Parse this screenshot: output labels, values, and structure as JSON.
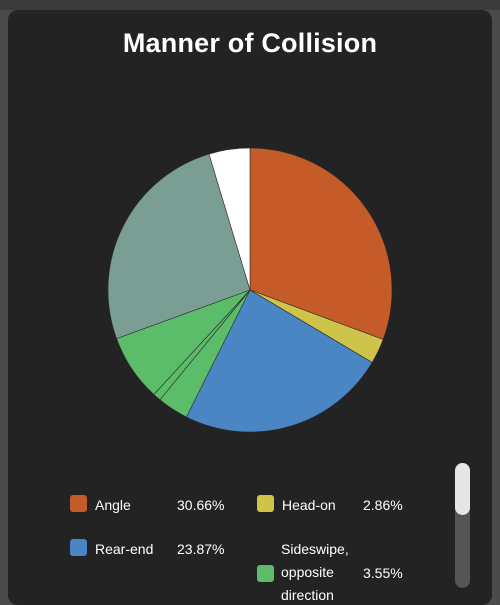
{
  "chart_data": {
    "type": "pie",
    "title": "Manner of Collision",
    "slices": [
      {
        "label": "Angle",
        "value": 30.66,
        "pct_label": "30.66%",
        "color": "#c45b28"
      },
      {
        "label": "Head-on",
        "value": 2.86,
        "pct_label": "2.86%",
        "color": "#cfc44a"
      },
      {
        "label": "Rear-end",
        "value": 23.87,
        "pct_label": "23.87%",
        "color": "#4a86c3"
      },
      {
        "label": "Sideswipe, opposite direction",
        "value": 3.55,
        "pct_label": "3.55%",
        "color": "#5bbd6a"
      },
      {
        "label": "",
        "value": 0.9,
        "pct_label": "",
        "color": "#5bbd6a"
      },
      {
        "label": "",
        "value": 7.6,
        "pct_label": "",
        "color": "#5bbd6a"
      },
      {
        "label": "",
        "value": 25.9,
        "pct_label": "",
        "color": "#7a9e93"
      },
      {
        "label": "",
        "value": 4.66,
        "pct_label": "",
        "color": "#ffffff"
      }
    ],
    "legend_placement": "bottom"
  },
  "legend": [
    {
      "label": "Angle",
      "pct": "30.66%",
      "color": "#c45b28"
    },
    {
      "label": "Head-on",
      "pct": "2.86%",
      "color": "#cfc44a"
    },
    {
      "label": "Rear-end",
      "pct": "23.87%",
      "color": "#4a86c3"
    },
    {
      "label_lines": [
        "Sideswipe,",
        "opposite",
        "direction"
      ],
      "pct": "3.55%",
      "color": "#5bbd6a"
    }
  ]
}
